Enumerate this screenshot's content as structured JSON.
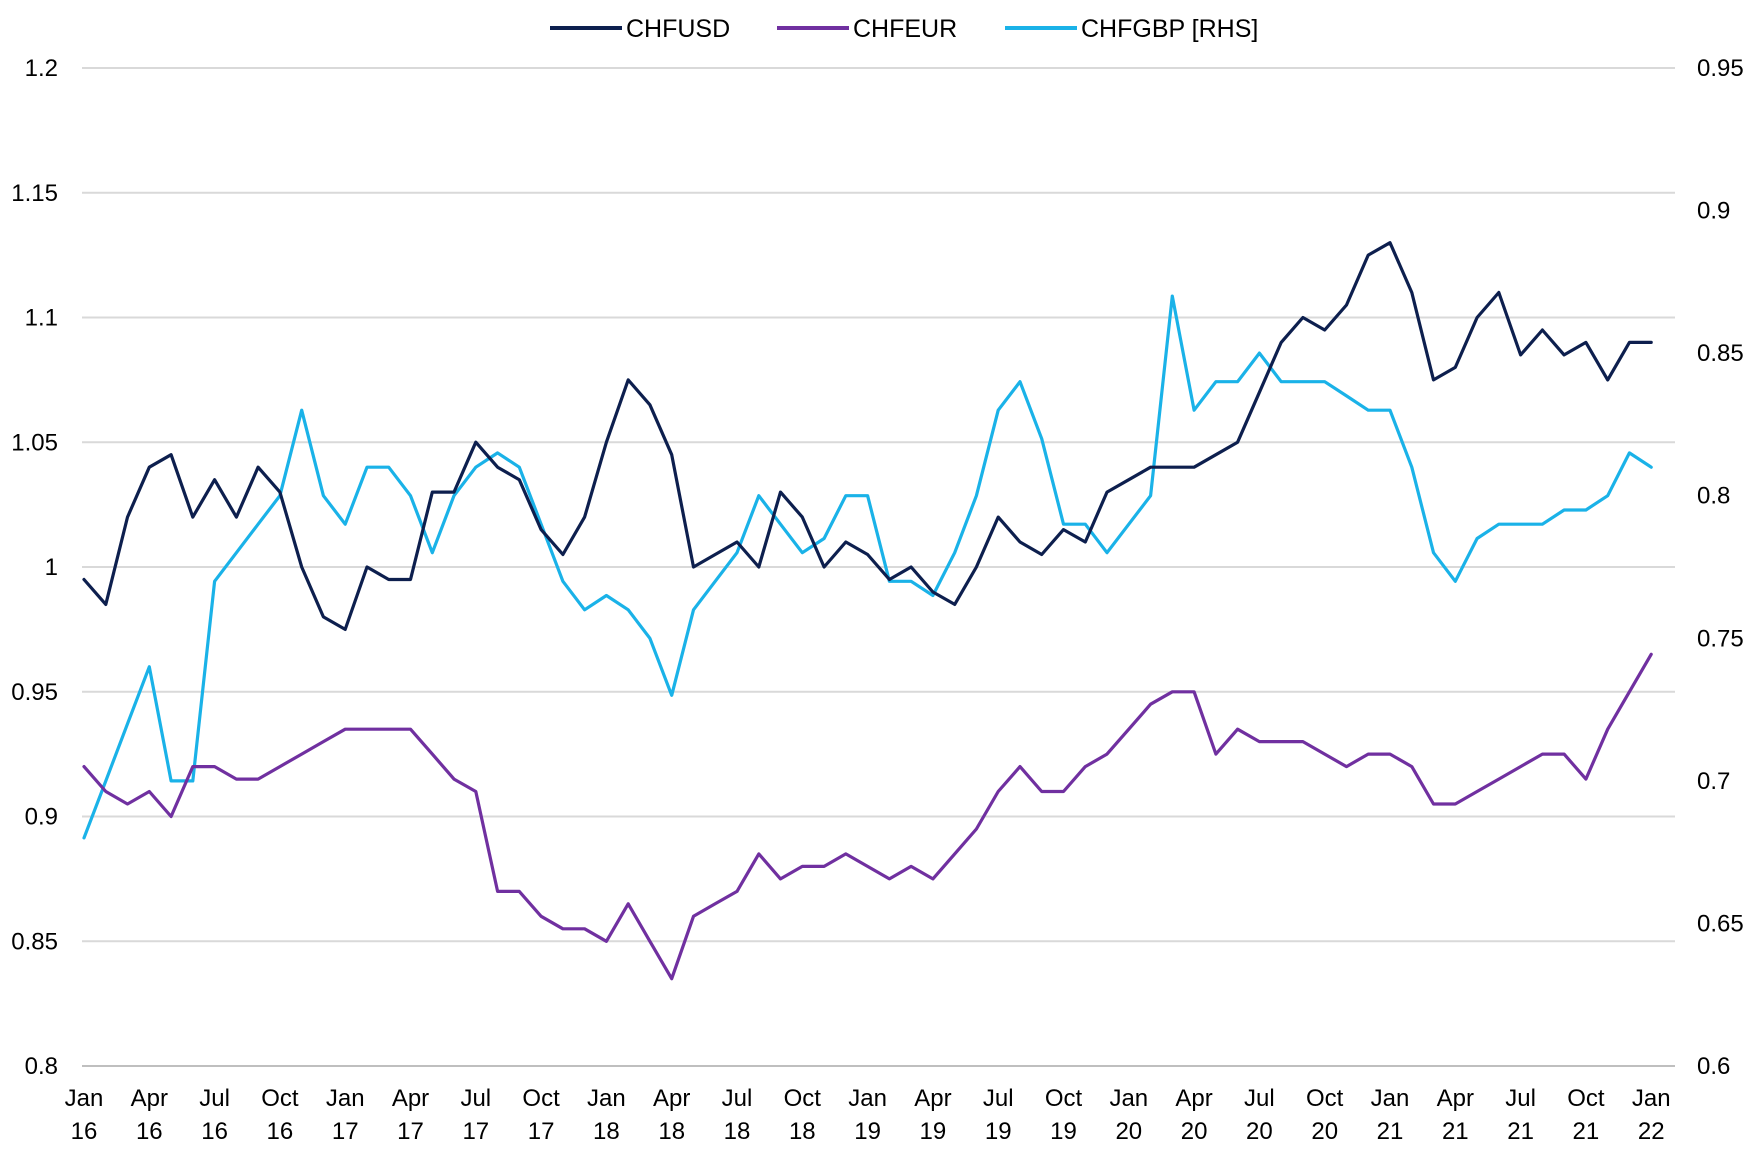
{
  "chart_data": {
    "type": "line",
    "title": "",
    "xlabel": "",
    "ylabel": "",
    "ylim": [
      0.8,
      1.2
    ],
    "y2lim": [
      0.6,
      0.95
    ],
    "y_ticks": [
      "1.2",
      "1.15",
      "1.1",
      "1.05",
      "1",
      "0.95",
      "0.9",
      "0.85",
      "0.8"
    ],
    "y2_ticks": [
      "0.95",
      "0.9",
      "0.85",
      "0.8",
      "0.75",
      "0.7",
      "0.65",
      "0.6"
    ],
    "grid": true,
    "legend_position": "top",
    "x_tick_labels": [
      {
        "month": "Jan",
        "year": "16"
      },
      {
        "month": "Apr",
        "year": "16"
      },
      {
        "month": "Jul",
        "year": "16"
      },
      {
        "month": "Oct",
        "year": "16"
      },
      {
        "month": "Jan",
        "year": "17"
      },
      {
        "month": "Apr",
        "year": "17"
      },
      {
        "month": "Jul",
        "year": "17"
      },
      {
        "month": "Oct",
        "year": "17"
      },
      {
        "month": "Jan",
        "year": "18"
      },
      {
        "month": "Apr",
        "year": "18"
      },
      {
        "month": "Jul",
        "year": "18"
      },
      {
        "month": "Oct",
        "year": "18"
      },
      {
        "month": "Jan",
        "year": "19"
      },
      {
        "month": "Apr",
        "year": "19"
      },
      {
        "month": "Jul",
        "year": "19"
      },
      {
        "month": "Oct",
        "year": "19"
      },
      {
        "month": "Jan",
        "year": "20"
      },
      {
        "month": "Apr",
        "year": "20"
      },
      {
        "month": "Jul",
        "year": "20"
      },
      {
        "month": "Oct",
        "year": "20"
      },
      {
        "month": "Jan",
        "year": "21"
      },
      {
        "month": "Apr",
        "year": "21"
      },
      {
        "month": "Jul",
        "year": "21"
      },
      {
        "month": "Oct",
        "year": "21"
      },
      {
        "month": "Jan",
        "year": "22"
      }
    ],
    "series": [
      {
        "name": "CHFUSD",
        "axis": "left",
        "color": "#0d1f4e",
        "x": [
          "2016-01",
          "2016-02",
          "2016-03",
          "2016-04",
          "2016-05",
          "2016-06",
          "2016-07",
          "2016-08",
          "2016-09",
          "2016-10",
          "2016-11",
          "2016-12",
          "2017-01",
          "2017-02",
          "2017-03",
          "2017-04",
          "2017-05",
          "2017-06",
          "2017-07",
          "2017-08",
          "2017-09",
          "2017-10",
          "2017-11",
          "2017-12",
          "2018-01",
          "2018-02",
          "2018-03",
          "2018-04",
          "2018-05",
          "2018-06",
          "2018-07",
          "2018-08",
          "2018-09",
          "2018-10",
          "2018-11",
          "2018-12",
          "2019-01",
          "2019-02",
          "2019-03",
          "2019-04",
          "2019-05",
          "2019-06",
          "2019-07",
          "2019-08",
          "2019-09",
          "2019-10",
          "2019-11",
          "2019-12",
          "2020-01",
          "2020-02",
          "2020-03",
          "2020-04",
          "2020-05",
          "2020-06",
          "2020-07",
          "2020-08",
          "2020-09",
          "2020-10",
          "2020-11",
          "2020-12",
          "2021-01",
          "2021-02",
          "2021-03",
          "2021-04",
          "2021-05",
          "2021-06",
          "2021-07",
          "2021-08",
          "2021-09",
          "2021-10",
          "2021-11",
          "2021-12",
          "2022-01"
        ],
        "values": [
          0.995,
          0.985,
          1.02,
          1.04,
          1.045,
          1.02,
          1.035,
          1.02,
          1.04,
          1.03,
          1.0,
          0.98,
          0.975,
          1.0,
          0.995,
          0.995,
          1.03,
          1.03,
          1.05,
          1.04,
          1.035,
          1.015,
          1.005,
          1.02,
          1.05,
          1.075,
          1.065,
          1.045,
          1.0,
          1.005,
          1.01,
          1.0,
          1.03,
          1.02,
          1.0,
          1.01,
          1.005,
          0.995,
          1.0,
          0.99,
          0.985,
          1.0,
          1.02,
          1.01,
          1.005,
          1.015,
          1.01,
          1.03,
          1.035,
          1.04,
          1.04,
          1.04,
          1.045,
          1.05,
          1.07,
          1.09,
          1.1,
          1.095,
          1.105,
          1.125,
          1.13,
          1.11,
          1.075,
          1.08,
          1.1,
          1.11,
          1.085,
          1.095,
          1.085,
          1.09,
          1.075,
          1.09,
          1.09
        ]
      },
      {
        "name": "CHFEUR",
        "axis": "left",
        "color": "#7030a0",
        "x": [
          "2016-01",
          "2016-02",
          "2016-03",
          "2016-04",
          "2016-05",
          "2016-06",
          "2016-07",
          "2016-08",
          "2016-09",
          "2016-10",
          "2016-11",
          "2016-12",
          "2017-01",
          "2017-02",
          "2017-03",
          "2017-04",
          "2017-05",
          "2017-06",
          "2017-07",
          "2017-08",
          "2017-09",
          "2017-10",
          "2017-11",
          "2017-12",
          "2018-01",
          "2018-02",
          "2018-03",
          "2018-04",
          "2018-05",
          "2018-06",
          "2018-07",
          "2018-08",
          "2018-09",
          "2018-10",
          "2018-11",
          "2018-12",
          "2019-01",
          "2019-02",
          "2019-03",
          "2019-04",
          "2019-05",
          "2019-06",
          "2019-07",
          "2019-08",
          "2019-09",
          "2019-10",
          "2019-11",
          "2019-12",
          "2020-01",
          "2020-02",
          "2020-03",
          "2020-04",
          "2020-05",
          "2020-06",
          "2020-07",
          "2020-08",
          "2020-09",
          "2020-10",
          "2020-11",
          "2020-12",
          "2021-01",
          "2021-02",
          "2021-03",
          "2021-04",
          "2021-05",
          "2021-06",
          "2021-07",
          "2021-08",
          "2021-09",
          "2021-10",
          "2021-11",
          "2021-12",
          "2022-01"
        ],
        "values": [
          0.92,
          0.91,
          0.905,
          0.91,
          0.9,
          0.92,
          0.92,
          0.915,
          0.915,
          0.92,
          0.925,
          0.93,
          0.935,
          0.935,
          0.935,
          0.935,
          0.925,
          0.915,
          0.91,
          0.87,
          0.87,
          0.86,
          0.855,
          0.855,
          0.85,
          0.865,
          0.85,
          0.835,
          0.86,
          0.865,
          0.87,
          0.885,
          0.875,
          0.88,
          0.88,
          0.885,
          0.88,
          0.875,
          0.88,
          0.875,
          0.885,
          0.895,
          0.91,
          0.92,
          0.91,
          0.91,
          0.92,
          0.925,
          0.935,
          0.945,
          0.95,
          0.95,
          0.925,
          0.935,
          0.93,
          0.93,
          0.93,
          0.925,
          0.92,
          0.925,
          0.925,
          0.92,
          0.905,
          0.905,
          0.91,
          0.915,
          0.92,
          0.925,
          0.925,
          0.915,
          0.935,
          0.95,
          0.965
        ]
      },
      {
        "name": "CHFGBP [RHS]",
        "axis": "right",
        "color": "#1ab2e8",
        "x": [
          "2016-01",
          "2016-02",
          "2016-03",
          "2016-04",
          "2016-05",
          "2016-06",
          "2016-07",
          "2016-08",
          "2016-09",
          "2016-10",
          "2016-11",
          "2016-12",
          "2017-01",
          "2017-02",
          "2017-03",
          "2017-04",
          "2017-05",
          "2017-06",
          "2017-07",
          "2017-08",
          "2017-09",
          "2017-10",
          "2017-11",
          "2017-12",
          "2018-01",
          "2018-02",
          "2018-03",
          "2018-04",
          "2018-05",
          "2018-06",
          "2018-07",
          "2018-08",
          "2018-09",
          "2018-10",
          "2018-11",
          "2018-12",
          "2019-01",
          "2019-02",
          "2019-03",
          "2019-04",
          "2019-05",
          "2019-06",
          "2019-07",
          "2019-08",
          "2019-09",
          "2019-10",
          "2019-11",
          "2019-12",
          "2020-01",
          "2020-02",
          "2020-03",
          "2020-04",
          "2020-05",
          "2020-06",
          "2020-07",
          "2020-08",
          "2020-09",
          "2020-10",
          "2020-11",
          "2020-12",
          "2021-01",
          "2021-02",
          "2021-03",
          "2021-04",
          "2021-05",
          "2021-06",
          "2021-07",
          "2021-08",
          "2021-09",
          "2021-10",
          "2021-11",
          "2021-12",
          "2022-01"
        ],
        "values": [
          0.68,
          0.7,
          0.72,
          0.74,
          0.7,
          0.7,
          0.77,
          0.78,
          0.79,
          0.8,
          0.83,
          0.8,
          0.79,
          0.81,
          0.81,
          0.8,
          0.78,
          0.8,
          0.81,
          0.815,
          0.81,
          0.79,
          0.77,
          0.76,
          0.765,
          0.76,
          0.75,
          0.73,
          0.76,
          0.77,
          0.78,
          0.8,
          0.79,
          0.78,
          0.785,
          0.8,
          0.8,
          0.77,
          0.77,
          0.765,
          0.78,
          0.8,
          0.83,
          0.84,
          0.82,
          0.79,
          0.79,
          0.78,
          0.79,
          0.8,
          0.87,
          0.83,
          0.84,
          0.84,
          0.85,
          0.84,
          0.84,
          0.84,
          0.835,
          0.83,
          0.83,
          0.81,
          0.78,
          0.77,
          0.785,
          0.79,
          0.79,
          0.79,
          0.795,
          0.795,
          0.8,
          0.815,
          0.81
        ]
      }
    ]
  }
}
